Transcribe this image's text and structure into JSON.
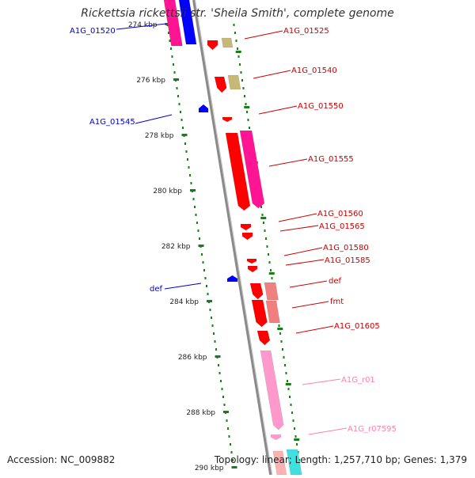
{
  "title": "Rickettsia rickettsii str. 'Sheila Smith', complete genome",
  "accession": "Accession: NC_009882",
  "summary": "Topology: linear; Length: 1,257,710 bp; Genes: 1,379",
  "colors": {
    "axis": "#808080",
    "tick": "#1e7a1e",
    "cds": "#ff0000",
    "cds_light": "#f08080",
    "magenta": "#ff1493",
    "blue": "#0000ff",
    "olive": "#c8b878",
    "pink": "#ff99cc",
    "cyan": "#40e0e0",
    "label_red": "#cc0000",
    "label_blue": "#0000cc",
    "label_pink": "#ff80b0"
  },
  "ruler": {
    "unit": "kbp",
    "ticks": [
      "274 kbp",
      "276 kbp",
      "278 kbp",
      "280 kbp",
      "282 kbp",
      "284 kbp",
      "286 kbp",
      "288 kbp",
      "290 kbp"
    ]
  },
  "genes": [
    {
      "label": "A1G_01520",
      "color": "label_blue"
    },
    {
      "label": "A1G_01525",
      "color": "label_red"
    },
    {
      "label": "A1G_01540",
      "color": "label_red"
    },
    {
      "label": "A1G_01545",
      "color": "label_blue"
    },
    {
      "label": "A1G_01550",
      "color": "label_red"
    },
    {
      "label": "A1G_01555",
      "color": "label_red"
    },
    {
      "label": "A1G_01560",
      "color": "label_red"
    },
    {
      "label": "A1G_01565",
      "color": "label_red"
    },
    {
      "label": "A1G_01580",
      "color": "label_red"
    },
    {
      "label": "A1G_01585",
      "color": "label_red"
    },
    {
      "label": "def",
      "color": "label_blue"
    },
    {
      "label": "def",
      "color": "label_red"
    },
    {
      "label": "fmt",
      "color": "label_red"
    },
    {
      "label": "A1G_01605",
      "color": "label_red"
    },
    {
      "label": "A1G_r01",
      "color": "label_pink"
    },
    {
      "label": "A1G_r07595",
      "color": "label_pink"
    }
  ]
}
